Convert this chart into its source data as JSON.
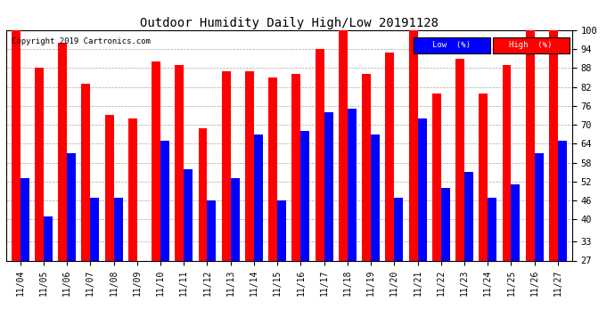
{
  "title": "Outdoor Humidity Daily High/Low 20191128",
  "copyright": "Copyright 2019 Cartronics.com",
  "dates": [
    "11/04",
    "11/05",
    "11/06",
    "11/07",
    "11/08",
    "11/09",
    "11/10",
    "11/11",
    "11/12",
    "11/13",
    "11/14",
    "11/15",
    "11/16",
    "11/17",
    "11/18",
    "11/19",
    "11/20",
    "11/21",
    "11/22",
    "11/23",
    "11/24",
    "11/25",
    "11/26",
    "11/27"
  ],
  "high": [
    100,
    88,
    96,
    83,
    73,
    72,
    90,
    89,
    69,
    87,
    87,
    85,
    86,
    94,
    100,
    86,
    93,
    100,
    80,
    91,
    80,
    89,
    100,
    100
  ],
  "low": [
    53,
    41,
    61,
    47,
    47,
    27,
    65,
    56,
    46,
    53,
    67,
    46,
    68,
    74,
    75,
    67,
    47,
    72,
    50,
    55,
    47,
    51,
    61,
    65
  ],
  "high_color": "#ff0000",
  "low_color": "#0000ff",
  "bg_color": "#ffffff",
  "ylim_min": 27,
  "ylim_max": 100,
  "yticks": [
    27,
    33,
    40,
    46,
    52,
    58,
    64,
    70,
    76,
    82,
    88,
    94,
    100
  ],
  "bar_width": 0.38,
  "legend_low_label": "Low  (%)",
  "legend_high_label": "High  (%)"
}
